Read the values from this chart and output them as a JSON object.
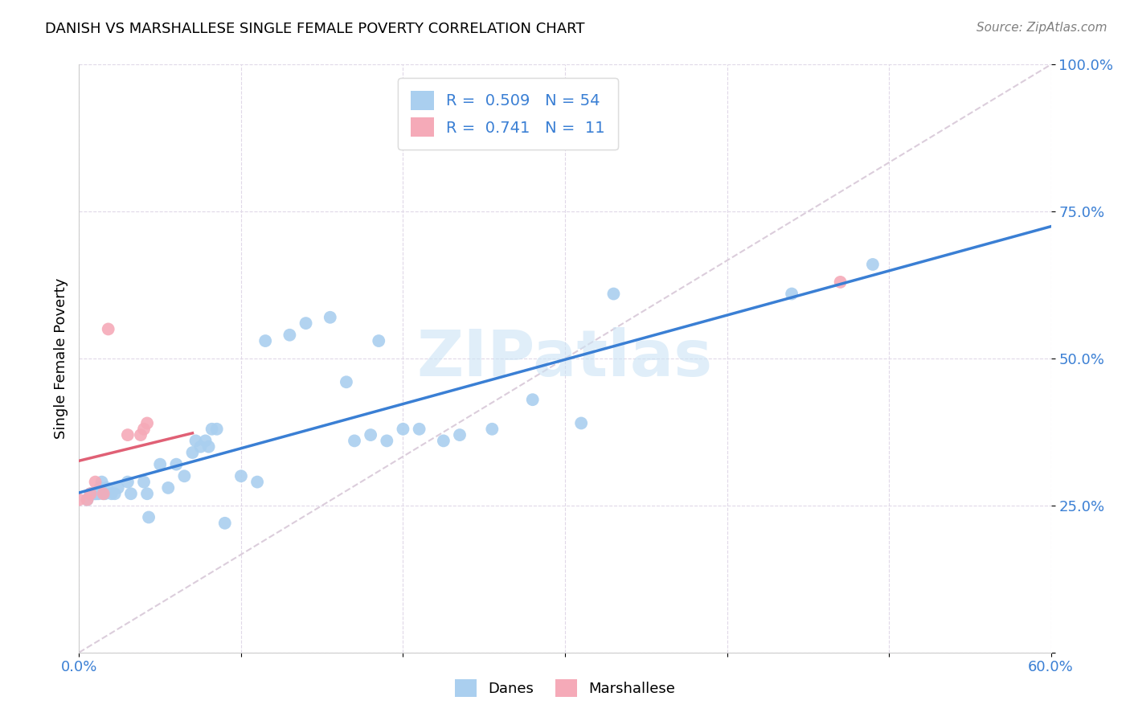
{
  "title": "DANISH VS MARSHALLESE SINGLE FEMALE POVERTY CORRELATION CHART",
  "source": "Source: ZipAtlas.com",
  "ylabel_label": "Single Female Poverty",
  "xlim": [
    0.0,
    0.6
  ],
  "ylim": [
    0.0,
    1.0
  ],
  "xticks": [
    0.0,
    0.1,
    0.2,
    0.3,
    0.4,
    0.5,
    0.6
  ],
  "xtick_labels": [
    "0.0%",
    "",
    "",
    "",
    "",
    "",
    "60.0%"
  ],
  "yticks": [
    0.0,
    0.25,
    0.5,
    0.75,
    1.0
  ],
  "ytick_labels": [
    "",
    "25.0%",
    "50.0%",
    "75.0%",
    "100.0%"
  ],
  "danes_color": "#aacfef",
  "marshallese_color": "#f5aab8",
  "danes_line_color": "#3a7fd4",
  "marshallese_line_color": "#e06075",
  "diag_line_color": "#d8c8d8",
  "danes_R": 0.509,
  "danes_N": 54,
  "marshallese_R": 0.741,
  "marshallese_N": 11,
  "watermark": "ZIPatlas",
  "danes_x": [
    0.005,
    0.007,
    0.008,
    0.009,
    0.01,
    0.01,
    0.011,
    0.012,
    0.013,
    0.014,
    0.015,
    0.016,
    0.017,
    0.02,
    0.022,
    0.024,
    0.03,
    0.032,
    0.04,
    0.042,
    0.043,
    0.05,
    0.055,
    0.06,
    0.065,
    0.07,
    0.072,
    0.075,
    0.078,
    0.08,
    0.082,
    0.085,
    0.09,
    0.1,
    0.11,
    0.115,
    0.13,
    0.14,
    0.155,
    0.165,
    0.17,
    0.18,
    0.185,
    0.19,
    0.2,
    0.21,
    0.225,
    0.235,
    0.255,
    0.28,
    0.31,
    0.33,
    0.44,
    0.49
  ],
  "danes_y": [
    0.26,
    0.27,
    0.27,
    0.27,
    0.27,
    0.27,
    0.27,
    0.27,
    0.28,
    0.29,
    0.27,
    0.27,
    0.28,
    0.27,
    0.27,
    0.28,
    0.29,
    0.27,
    0.29,
    0.27,
    0.23,
    0.32,
    0.28,
    0.32,
    0.3,
    0.34,
    0.36,
    0.35,
    0.36,
    0.35,
    0.38,
    0.38,
    0.22,
    0.3,
    0.29,
    0.53,
    0.54,
    0.56,
    0.57,
    0.46,
    0.36,
    0.37,
    0.53,
    0.36,
    0.38,
    0.38,
    0.36,
    0.37,
    0.38,
    0.43,
    0.39,
    0.61,
    0.61,
    0.66
  ],
  "marshallese_x": [
    0.0,
    0.005,
    0.007,
    0.01,
    0.015,
    0.018,
    0.03,
    0.038,
    0.04,
    0.042,
    0.47
  ],
  "marshallese_y": [
    0.26,
    0.26,
    0.27,
    0.29,
    0.27,
    0.55,
    0.37,
    0.37,
    0.38,
    0.39,
    0.63
  ]
}
